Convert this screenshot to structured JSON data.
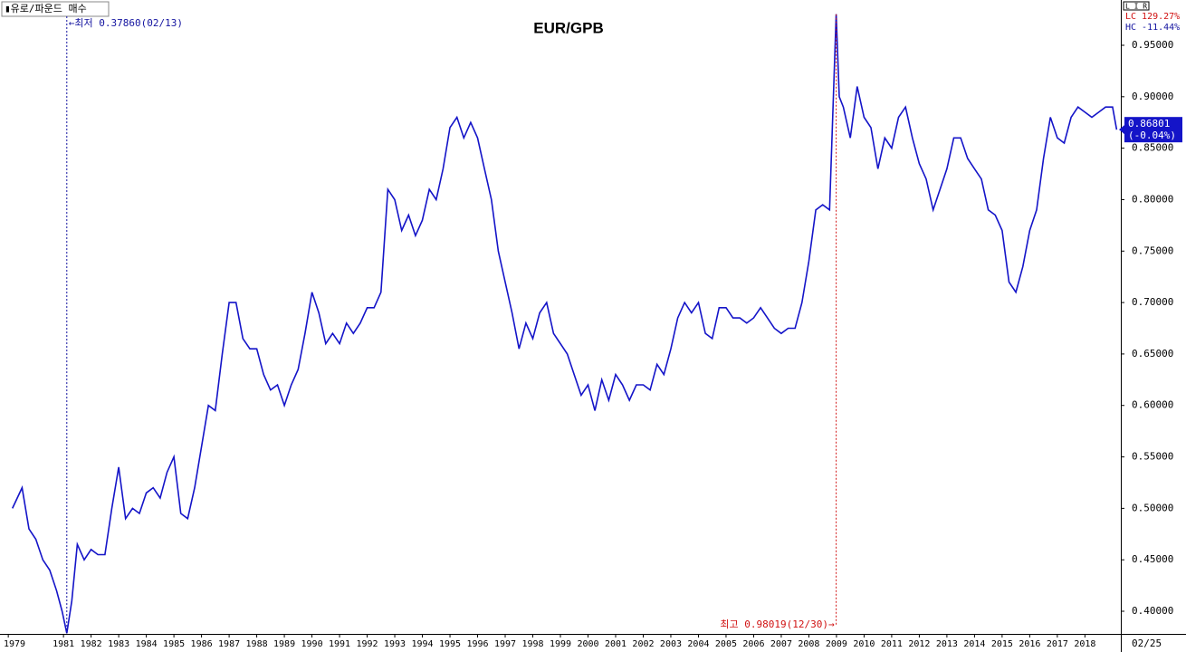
{
  "chart_data": {
    "type": "line",
    "title": "EUR/GPB",
    "instrument_label": "▮유로/파운드 매수",
    "mode_label": "L I R",
    "lc_label": "LC 129.27%",
    "hc_label": "HC -11.44%",
    "last_label": "0.86801",
    "last_change": "(-0.04%)",
    "end_date_label": "02/25",
    "annotations": {
      "low": {
        "text": "←최저 0.37860(02/13)",
        "x": 1981.12,
        "value": 0.3786
      },
      "high": {
        "text": "최고 0.98019(12/30)→",
        "x": 2008.99,
        "value": 0.98019
      }
    },
    "x": [
      1979.15,
      1979.5,
      1979.75,
      1980.0,
      1980.25,
      1980.5,
      1980.75,
      1980.95,
      1981.12,
      1981.3,
      1981.5,
      1981.75,
      1982.0,
      1982.25,
      1982.5,
      1982.75,
      1983.0,
      1983.25,
      1983.5,
      1983.75,
      1984.0,
      1984.25,
      1984.5,
      1984.75,
      1985.0,
      1985.25,
      1985.5,
      1985.75,
      1986.0,
      1986.25,
      1986.5,
      1986.75,
      1987.0,
      1987.25,
      1987.5,
      1987.75,
      1988.0,
      1988.25,
      1988.5,
      1988.75,
      1989.0,
      1989.25,
      1989.5,
      1989.75,
      1990.0,
      1990.25,
      1990.5,
      1990.75,
      1991.0,
      1991.25,
      1991.5,
      1991.75,
      1992.0,
      1992.25,
      1992.5,
      1992.75,
      1993.0,
      1993.25,
      1993.5,
      1993.75,
      1994.0,
      1994.25,
      1994.5,
      1994.75,
      1995.0,
      1995.25,
      1995.5,
      1995.75,
      1996.0,
      1996.25,
      1996.5,
      1996.75,
      1997.0,
      1997.25,
      1997.5,
      1997.75,
      1998.0,
      1998.25,
      1998.5,
      1998.75,
      1999.0,
      1999.25,
      1999.5,
      1999.75,
      2000.0,
      2000.25,
      2000.5,
      2000.75,
      2001.0,
      2001.25,
      2001.5,
      2001.75,
      2002.0,
      2002.25,
      2002.5,
      2002.75,
      2003.0,
      2003.25,
      2003.5,
      2003.75,
      2004.0,
      2004.25,
      2004.5,
      2004.75,
      2005.0,
      2005.25,
      2005.5,
      2005.75,
      2006.0,
      2006.25,
      2006.5,
      2006.75,
      2007.0,
      2007.25,
      2007.5,
      2007.75,
      2008.0,
      2008.25,
      2008.5,
      2008.75,
      2008.99,
      2009.1,
      2009.25,
      2009.5,
      2009.75,
      2010.0,
      2010.25,
      2010.5,
      2010.75,
      2011.0,
      2011.25,
      2011.5,
      2011.75,
      2012.0,
      2012.25,
      2012.5,
      2012.75,
      2013.0,
      2013.25,
      2013.5,
      2013.75,
      2014.0,
      2014.25,
      2014.5,
      2014.75,
      2015.0,
      2015.25,
      2015.5,
      2015.75,
      2016.0,
      2016.25,
      2016.5,
      2016.75,
      2017.0,
      2017.25,
      2017.5,
      2017.75,
      2018.0,
      2018.25,
      2018.5,
      2018.75,
      2019.0,
      2019.15
    ],
    "series": [
      {
        "name": "EUR/GPB",
        "color": "#1414c8",
        "values": [
          0.5,
          0.52,
          0.48,
          0.47,
          0.45,
          0.44,
          0.42,
          0.4,
          0.3786,
          0.41,
          0.465,
          0.45,
          0.46,
          0.455,
          0.455,
          0.5,
          0.54,
          0.49,
          0.5,
          0.495,
          0.515,
          0.52,
          0.51,
          0.535,
          0.55,
          0.495,
          0.49,
          0.52,
          0.56,
          0.6,
          0.595,
          0.65,
          0.7,
          0.7,
          0.665,
          0.655,
          0.655,
          0.63,
          0.615,
          0.62,
          0.6,
          0.62,
          0.635,
          0.67,
          0.71,
          0.69,
          0.66,
          0.67,
          0.66,
          0.68,
          0.67,
          0.68,
          0.695,
          0.695,
          0.71,
          0.81,
          0.8,
          0.77,
          0.785,
          0.765,
          0.78,
          0.81,
          0.8,
          0.83,
          0.87,
          0.88,
          0.86,
          0.875,
          0.86,
          0.83,
          0.8,
          0.75,
          0.72,
          0.69,
          0.655,
          0.68,
          0.665,
          0.69,
          0.7,
          0.67,
          0.66,
          0.65,
          0.63,
          0.61,
          0.62,
          0.595,
          0.625,
          0.605,
          0.63,
          0.62,
          0.605,
          0.62,
          0.62,
          0.615,
          0.64,
          0.63,
          0.655,
          0.685,
          0.7,
          0.69,
          0.7,
          0.67,
          0.665,
          0.695,
          0.695,
          0.685,
          0.685,
          0.68,
          0.685,
          0.695,
          0.685,
          0.675,
          0.67,
          0.675,
          0.675,
          0.7,
          0.74,
          0.79,
          0.795,
          0.79,
          0.98019,
          0.9,
          0.89,
          0.86,
          0.91,
          0.88,
          0.87,
          0.83,
          0.86,
          0.85,
          0.88,
          0.89,
          0.86,
          0.835,
          0.82,
          0.79,
          0.81,
          0.83,
          0.86,
          0.86,
          0.84,
          0.83,
          0.82,
          0.79,
          0.785,
          0.77,
          0.72,
          0.71,
          0.735,
          0.77,
          0.79,
          0.84,
          0.88,
          0.86,
          0.855,
          0.88,
          0.89,
          0.885,
          0.88,
          0.885,
          0.89,
          0.89,
          0.868
        ]
      }
    ],
    "xlim": [
      1978.7,
      2019.3
    ],
    "xticks": [
      1979,
      1981,
      1982,
      1983,
      1984,
      1985,
      1986,
      1987,
      1988,
      1989,
      1990,
      1991,
      1992,
      1993,
      1994,
      1995,
      1996,
      1997,
      1998,
      1999,
      2000,
      2001,
      2002,
      2003,
      2004,
      2005,
      2006,
      2007,
      2008,
      2009,
      2010,
      2011,
      2012,
      2013,
      2014,
      2015,
      2016,
      2017,
      2018
    ],
    "ylim": [
      0.378,
      0.994
    ],
    "yticks": [
      {
        "value": 0.4,
        "label": "0.40000"
      },
      {
        "value": 0.45,
        "label": "0.45000"
      },
      {
        "value": 0.5,
        "label": "0.50000"
      },
      {
        "value": 0.55,
        "label": "0.55000"
      },
      {
        "value": 0.6,
        "label": "0.60000"
      },
      {
        "value": 0.65,
        "label": "0.65000"
      },
      {
        "value": 0.7,
        "label": "0.70000"
      },
      {
        "value": 0.75,
        "label": "0.75000"
      },
      {
        "value": 0.8,
        "label": "0.80000"
      },
      {
        "value": 0.85,
        "label": "0.85000"
      },
      {
        "value": 0.9,
        "label": "0.90000"
      },
      {
        "value": 0.95,
        "label": "0.95000"
      }
    ],
    "grid": false
  }
}
